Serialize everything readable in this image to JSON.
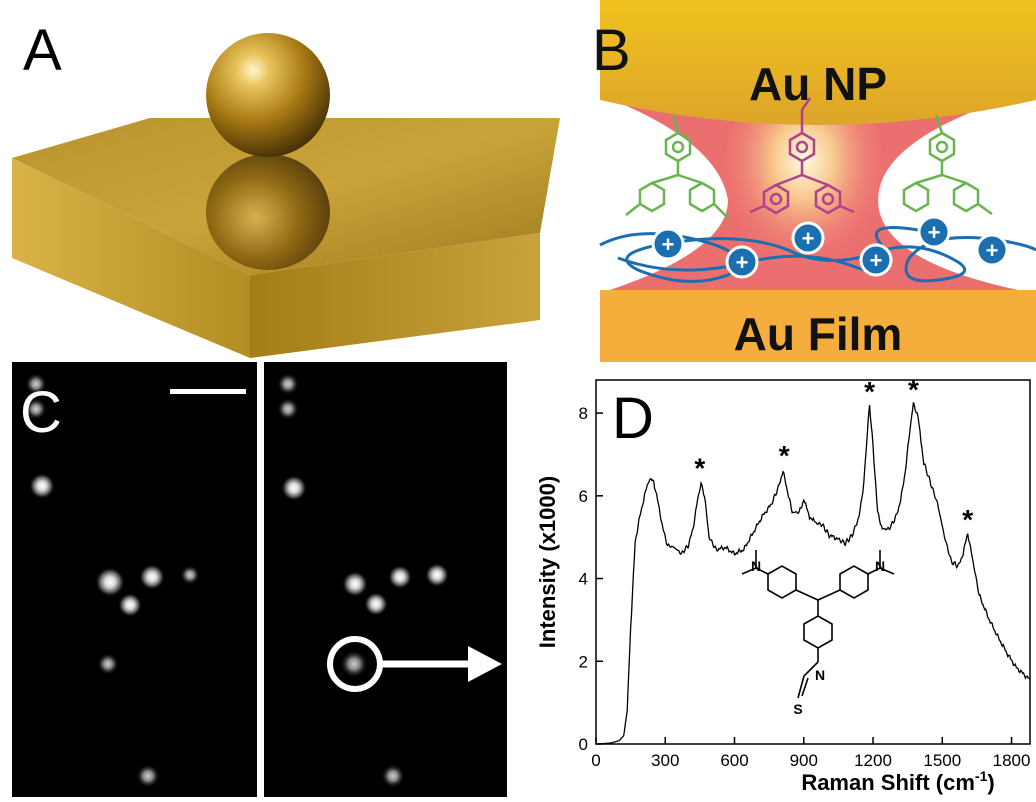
{
  "panel_labels": {
    "a": "A",
    "b": "B",
    "c": "C",
    "d": "D"
  },
  "panelB": {
    "top_label": "Au NP",
    "bottom_label": "Au Film",
    "charge_symbol": "+"
  },
  "colors": {
    "gold": "#c89a2a",
    "np_top": "#e8b620",
    "film": "#f5ad3c",
    "hotspot": "#ec6f6f",
    "polymer": "#1b6fb0",
    "molecule_green": "#6ab44f",
    "molecule_magenta": "#b0438f"
  },
  "panelD_struct": {
    "n_left": "N",
    "n_right": "N",
    "n_bottom": "N",
    "s": "S"
  },
  "chart_data": {
    "type": "line",
    "title": "",
    "xlabel": "Raman Shift (cm",
    "xlabel_sup": "-1",
    "xlabel_tail": ")",
    "ylabel": "Intensity (x1000)",
    "xlim": [
      0,
      1880
    ],
    "ylim": [
      0,
      8.8
    ],
    "xticks": [
      0,
      300,
      600,
      900,
      1200,
      1500,
      1800
    ],
    "yticks": [
      0,
      2,
      4,
      6,
      8
    ],
    "grid": false,
    "peak_marker": "*",
    "peaks": [
      {
        "x": 450,
        "y": 6.35
      },
      {
        "x": 815,
        "y": 6.65
      },
      {
        "x": 1185,
        "y": 8.2
      },
      {
        "x": 1375,
        "y": 8.25
      },
      {
        "x": 1610,
        "y": 5.1
      }
    ],
    "series": [
      {
        "x": [
          0,
          60,
          100,
          120,
          135,
          150,
          170,
          190,
          210,
          230,
          250,
          270,
          290,
          310,
          340,
          370,
          400,
          420,
          440,
          455,
          470,
          490,
          520,
          560,
          600,
          640,
          680,
          720,
          760,
          790,
          810,
          830,
          850,
          880,
          900,
          925,
          950,
          980,
          1010,
          1050,
          1080,
          1110,
          1140,
          1160,
          1175,
          1185,
          1200,
          1220,
          1240,
          1270,
          1300,
          1320,
          1340,
          1360,
          1375,
          1395,
          1420,
          1450,
          1480,
          1510,
          1540,
          1570,
          1590,
          1610,
          1630,
          1660,
          1700,
          1740,
          1780,
          1820,
          1860,
          1880
        ],
        "values": [
          0,
          0.02,
          0.08,
          0.2,
          0.8,
          2.8,
          4.9,
          5.5,
          6.0,
          6.4,
          6.35,
          5.8,
          5.2,
          4.8,
          4.75,
          4.6,
          4.8,
          5.2,
          5.9,
          6.3,
          6.0,
          5.0,
          4.7,
          4.75,
          4.6,
          4.7,
          5.1,
          5.5,
          5.8,
          6.2,
          6.6,
          6.1,
          5.6,
          5.6,
          5.9,
          5.5,
          5.35,
          5.3,
          5.05,
          4.95,
          4.85,
          5.05,
          5.5,
          6.3,
          7.5,
          8.2,
          7.2,
          5.6,
          5.2,
          5.2,
          5.5,
          5.9,
          6.6,
          7.6,
          8.25,
          7.9,
          6.8,
          6.3,
          5.8,
          5.0,
          4.4,
          4.3,
          4.6,
          5.1,
          4.5,
          3.6,
          3.05,
          2.6,
          2.2,
          1.85,
          1.65,
          1.55
        ]
      }
    ]
  }
}
